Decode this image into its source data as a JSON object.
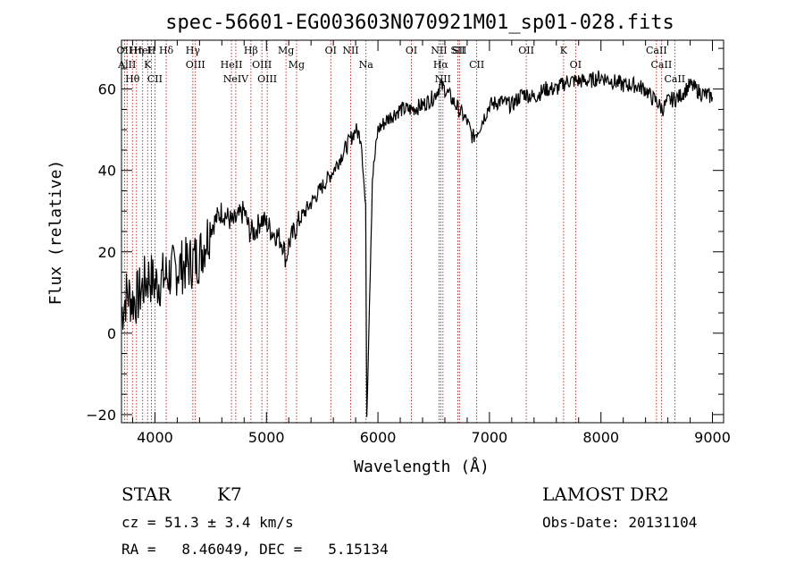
{
  "chart_data": {
    "type": "line",
    "title": "spec-56601-EG003603N070921M01_sp01-028.fits",
    "xlabel": "Wavelength (Å)",
    "ylabel": "Flux (relative)",
    "xlim": [
      3700,
      9100
    ],
    "ylim": [
      -22,
      72
    ],
    "xticks": [
      4000,
      5000,
      6000,
      7000,
      8000,
      9000
    ],
    "yticks": [
      -20,
      0,
      20,
      40,
      60
    ],
    "grid": false,
    "series": [
      {
        "x": [
          3700,
          3750,
          3800,
          3850,
          3900,
          3950,
          4000,
          4100,
          4200,
          4300,
          4400,
          4500,
          4600,
          4700,
          4800,
          4850,
          4900,
          4950,
          5000,
          5050,
          5100,
          5150,
          5175,
          5200,
          5300,
          5400,
          5500,
          5600,
          5700,
          5800,
          5850,
          5890,
          5900,
          5950,
          6000,
          6100,
          6200,
          6300,
          6400,
          6500,
          6560,
          6600,
          6650,
          6700,
          6750,
          6800,
          6850,
          6900,
          7000,
          7100,
          7200,
          7300,
          7400,
          7500,
          7600,
          7700,
          7800,
          7900,
          8000,
          8100,
          8200,
          8300,
          8400,
          8450,
          8500,
          8550,
          8600,
          8700,
          8800,
          8900,
          9000
        ],
        "values": [
          5,
          10,
          8,
          9,
          12,
          14,
          12,
          14,
          16,
          17,
          19,
          26,
          30,
          27,
          30,
          25,
          25,
          28,
          27,
          25,
          24,
          22,
          18,
          22,
          28,
          32,
          36,
          40,
          45,
          50,
          48,
          30,
          -20,
          38,
          50,
          53,
          55,
          55,
          56,
          58,
          61,
          60,
          58,
          56,
          54,
          52,
          48,
          50,
          56,
          57,
          56,
          59,
          58,
          60,
          60,
          62,
          62,
          62,
          63,
          62,
          61,
          61,
          60,
          58,
          57,
          55,
          57,
          58,
          61,
          59,
          58
        ]
      }
    ],
    "lines": [
      {
        "x": 3727,
        "label": "OII"
      },
      {
        "x": 3750,
        "label": "AlII"
      },
      {
        "x": 3798,
        "label": "Hθ"
      },
      {
        "x": 3835,
        "label": "Hη"
      },
      {
        "x": 3890,
        "label": "HeI"
      },
      {
        "x": 3934,
        "label": "K"
      },
      {
        "x": 3968,
        "label": "H"
      },
      {
        "x": 4000,
        "label": "CII"
      },
      {
        "x": 4101,
        "label": "Hδ"
      },
      {
        "x": 4340,
        "label": "Hγ"
      },
      {
        "x": 4363,
        "label": "OIII"
      },
      {
        "x": 4861,
        "label": "Hβ"
      },
      {
        "x": 4686,
        "label": "HeII"
      },
      {
        "x": 4725,
        "label": "NeIV"
      },
      {
        "x": 4959,
        "label": "OIII"
      },
      {
        "x": 5007,
        "label": "OIII"
      },
      {
        "x": 5175,
        "label": "Mg"
      },
      {
        "x": 5270,
        "label": "Mg"
      },
      {
        "x": 5577,
        "label": "OI"
      },
      {
        "x": 5755,
        "label": "NII"
      },
      {
        "x": 5893,
        "label": "Na"
      },
      {
        "x": 6300,
        "label": "OI"
      },
      {
        "x": 6548,
        "label": "NII"
      },
      {
        "x": 6563,
        "label": "Hα"
      },
      {
        "x": 6583,
        "label": "NII"
      },
      {
        "x": 6716,
        "label": "SII"
      },
      {
        "x": 6731,
        "label": "SII"
      },
      {
        "x": 6886,
        "label": "CII"
      },
      {
        "x": 7330,
        "label": "OII"
      },
      {
        "x": 7665,
        "label": "K"
      },
      {
        "x": 7773,
        "label": "OI"
      },
      {
        "x": 8498,
        "label": "CaII"
      },
      {
        "x": 8542,
        "label": "CaII"
      },
      {
        "x": 8662,
        "label": "CaII"
      }
    ]
  },
  "info": {
    "class": "STAR",
    "subclass": "K7",
    "survey": "LAMOST DR2",
    "cz": "cz = 51.3 ± 3.4 km/s",
    "obs_date": "Obs-Date: 20131104",
    "radec": "RA =   8.46049, DEC =   5.15134"
  }
}
